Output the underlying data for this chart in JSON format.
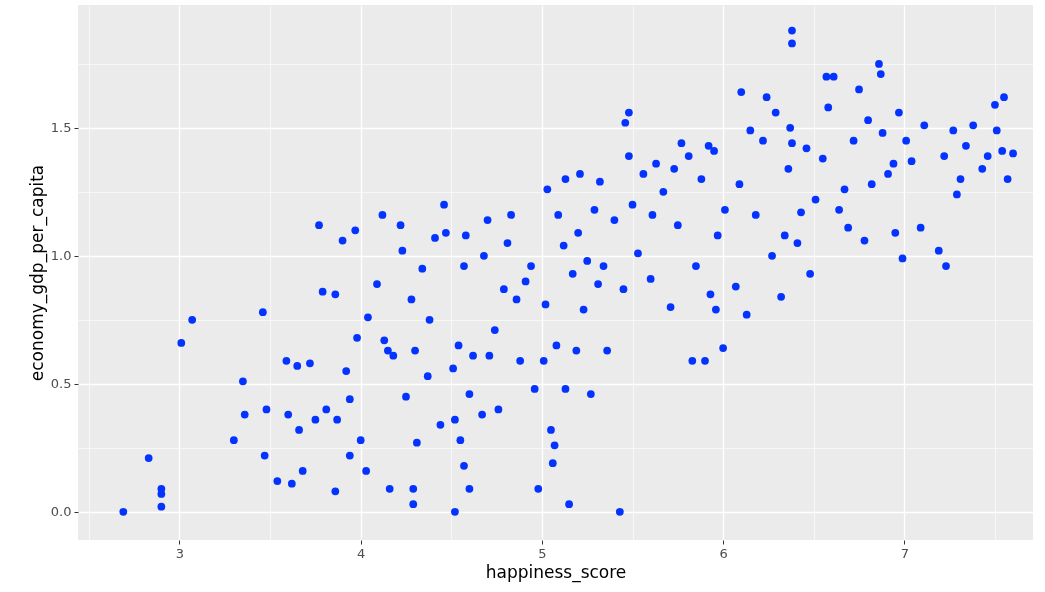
{
  "chart_data": {
    "type": "scatter",
    "xlabel": "happiness_score",
    "ylabel": "economy_gdp_per_capita",
    "xlim": [
      2.44,
      7.71
    ],
    "ylim": [
      -0.11,
      1.98
    ],
    "xticks": [
      {
        "value": 2.5,
        "label": null
      },
      3,
      {
        "value": 3.5,
        "label": null
      },
      4,
      {
        "value": 4.5,
        "label": null
      },
      5,
      {
        "value": 5.5,
        "label": null
      },
      6,
      {
        "value": 6.5,
        "label": null
      },
      7,
      {
        "value": 7.5,
        "label": null
      }
    ],
    "yticks": [
      {
        "value": 0,
        "label": "0.0"
      },
      {
        "value": 0.25,
        "label": null
      },
      0.5,
      {
        "value": 0.75,
        "label": null
      },
      {
        "value": 1,
        "label": "1.0"
      },
      {
        "value": 1.25,
        "label": null
      },
      1.5,
      {
        "value": 1.75,
        "label": null
      }
    ],
    "grid": true,
    "marker": "circle",
    "series": [
      {
        "color": "#0433ff",
        "x": [
          2.69,
          2.83,
          2.9,
          2.9,
          2.9,
          3.01,
          3.07,
          3.3,
          3.35,
          3.36,
          3.46,
          3.47,
          3.48,
          3.54,
          3.59,
          3.6,
          3.62,
          3.65,
          3.66,
          3.68,
          3.72,
          3.75,
          3.77,
          3.79,
          3.81,
          3.86,
          3.86,
          3.87,
          3.9,
          3.92,
          3.94,
          3.94,
          3.97,
          3.98,
          4.0,
          4.03,
          4.04,
          4.09,
          4.12,
          4.13,
          4.15,
          4.16,
          4.18,
          4.22,
          4.23,
          4.25,
          4.28,
          4.29,
          4.29,
          4.3,
          4.31,
          4.34,
          4.37,
          4.38,
          4.41,
          4.44,
          4.46,
          4.47,
          4.51,
          4.52,
          4.52,
          4.54,
          4.55,
          4.57,
          4.57,
          4.58,
          4.6,
          4.6,
          4.62,
          4.67,
          4.68,
          4.7,
          4.71,
          4.74,
          4.76,
          4.79,
          4.81,
          4.83,
          4.86,
          4.88,
          4.91,
          4.94,
          4.96,
          4.98,
          5.01,
          5.02,
          5.03,
          5.05,
          5.06,
          5.07,
          5.08,
          5.09,
          5.12,
          5.13,
          5.13,
          5.15,
          5.17,
          5.19,
          5.2,
          5.21,
          5.23,
          5.25,
          5.27,
          5.29,
          5.31,
          5.32,
          5.34,
          5.36,
          5.4,
          5.43,
          5.45,
          5.46,
          5.48,
          5.48,
          5.5,
          5.53,
          5.56,
          5.6,
          5.61,
          5.63,
          5.67,
          5.71,
          5.73,
          5.75,
          5.77,
          5.81,
          5.83,
          5.85,
          5.88,
          5.9,
          5.92,
          5.93,
          5.95,
          5.96,
          5.97,
          6.0,
          6.01,
          6.07,
          6.09,
          6.1,
          6.13,
          6.15,
          6.18,
          6.22,
          6.24,
          6.27,
          6.29,
          6.32,
          6.34,
          6.36,
          6.37,
          6.38,
          6.38,
          6.38,
          6.41,
          6.43,
          6.46,
          6.48,
          6.51,
          6.55,
          6.57,
          6.58,
          6.61,
          6.64,
          6.67,
          6.69,
          6.72,
          6.75,
          6.78,
          6.8,
          6.82,
          6.86,
          6.87,
          6.88,
          6.91,
          6.94,
          6.95,
          6.97,
          6.99,
          7.01,
          7.04,
          7.09,
          7.11,
          7.19,
          7.22,
          7.23,
          7.27,
          7.29,
          7.31,
          7.34,
          7.38,
          7.43,
          7.46,
          7.5,
          7.51,
          7.54,
          7.55,
          7.57,
          7.6
        ],
        "values": [
          0.0,
          0.21,
          0.09,
          0.07,
          0.02,
          0.66,
          0.75,
          0.28,
          0.51,
          0.38,
          0.78,
          0.22,
          0.4,
          0.12,
          0.59,
          0.38,
          0.11,
          0.57,
          0.32,
          0.16,
          0.58,
          0.36,
          1.12,
          0.86,
          0.4,
          0.85,
          0.08,
          0.36,
          1.06,
          0.55,
          0.22,
          0.44,
          1.1,
          0.68,
          0.28,
          0.16,
          0.76,
          0.89,
          1.16,
          0.67,
          0.63,
          0.09,
          0.61,
          1.12,
          1.02,
          0.45,
          0.83,
          0.03,
          0.09,
          0.63,
          0.27,
          0.95,
          0.53,
          0.75,
          1.07,
          0.34,
          1.2,
          1.09,
          0.56,
          0.0,
          0.36,
          0.65,
          0.28,
          0.18,
          0.96,
          1.08,
          0.46,
          0.09,
          0.61,
          0.38,
          1.0,
          1.14,
          0.61,
          0.71,
          0.4,
          0.87,
          1.05,
          1.16,
          0.83,
          0.59,
          0.9,
          0.96,
          0.48,
          0.09,
          0.59,
          0.81,
          1.26,
          0.32,
          0.19,
          0.26,
          0.65,
          1.16,
          1.04,
          0.48,
          1.3,
          0.03,
          0.93,
          0.63,
          1.09,
          1.32,
          0.79,
          0.98,
          0.46,
          1.18,
          0.89,
          1.29,
          0.96,
          0.63,
          1.14,
          0.0,
          0.87,
          1.52,
          1.56,
          1.39,
          1.2,
          1.01,
          1.32,
          0.91,
          1.16,
          1.36,
          1.25,
          0.8,
          1.34,
          1.12,
          1.44,
          1.39,
          0.59,
          0.96,
          1.3,
          0.59,
          1.43,
          0.85,
          1.41,
          0.79,
          1.08,
          0.64,
          1.18,
          0.88,
          1.28,
          1.64,
          0.77,
          1.49,
          1.16,
          1.45,
          1.62,
          1.0,
          1.56,
          0.84,
          1.08,
          1.34,
          1.5,
          1.44,
          1.88,
          1.83,
          1.05,
          1.17,
          1.42,
          0.93,
          1.22,
          1.38,
          1.7,
          1.58,
          1.7,
          1.18,
          1.26,
          1.11,
          1.45,
          1.65,
          1.06,
          1.53,
          1.28,
          1.75,
          1.71,
          1.48,
          1.32,
          1.36,
          1.09,
          1.56,
          0.99,
          1.45,
          1.37,
          1.11,
          1.51,
          1.02,
          1.39,
          0.96,
          1.49,
          1.24,
          1.3,
          1.43,
          1.51,
          1.34,
          1.39,
          1.59,
          1.49,
          1.41,
          1.62,
          1.3,
          1.4
        ]
      }
    ]
  }
}
